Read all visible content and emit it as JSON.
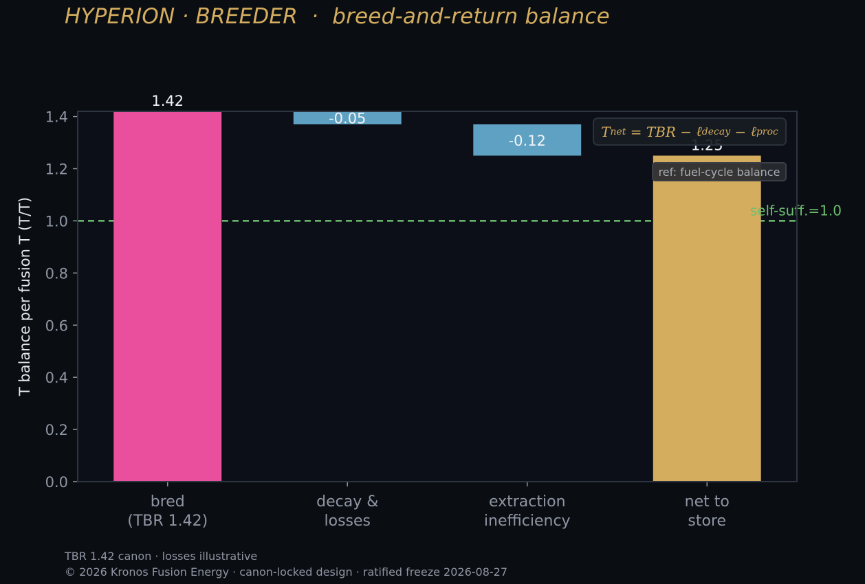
{
  "header": {
    "title": "HYPERION · BREEDER  ·  breed-and-return balance"
  },
  "footer": {
    "line1": "TBR 1.42 canon · losses illustrative",
    "line2": "© 2026 Kronos Fusion Energy · canon-locked design · ratified freeze 2026-08-27"
  },
  "annotations": {
    "formula": {
      "lhs": "T",
      "lhs_sub": "net",
      "eq": " = ",
      "tbr": "TBR",
      "minus": " − ",
      "ell": "ℓ",
      "decay_sub": "decay",
      "proc_sub": "proc"
    },
    "ref_note": "ref: fuel-cycle balance"
  },
  "chart_data": {
    "type": "bar",
    "subtype": "waterfall",
    "title": "",
    "xlabel": "",
    "ylabel": "T balance per fusion T (T/T)",
    "ylim": [
      0,
      1.42
    ],
    "yticks": [
      0.0,
      0.2,
      0.4,
      0.6,
      0.8,
      1.0,
      1.2,
      1.4
    ],
    "ytick_labels": [
      "0.0",
      "0.2",
      "0.4",
      "0.6",
      "0.8",
      "1.0",
      "1.2",
      "1.4"
    ],
    "grid": false,
    "categories": [
      [
        "bred",
        "(TBR 1.42)"
      ],
      [
        "decay &",
        "losses"
      ],
      [
        "extraction",
        "inefficiency"
      ],
      [
        "net to",
        "store"
      ]
    ],
    "bars": [
      {
        "kind": "total",
        "start": 0,
        "end": 1.42,
        "label": "1.42",
        "color": "#ea4f9e"
      },
      {
        "kind": "delta",
        "start": 1.42,
        "end": 1.37,
        "label": "-0.05",
        "color": "#5ea1c2"
      },
      {
        "kind": "delta",
        "start": 1.37,
        "end": 1.25,
        "label": "-0.12",
        "color": "#5ea1c2"
      },
      {
        "kind": "total",
        "start": 0,
        "end": 1.25,
        "label": "1.25",
        "color": "#d4ad5f"
      }
    ],
    "reference_line": {
      "y": 1.0,
      "label": "self-suff.=1.0",
      "color": "#6cc070",
      "style": "dashed"
    },
    "colors": {
      "background": "#0a0d12",
      "plot_bg": "#0c0f17",
      "frame": "#2e3440",
      "accent": "#d4ad5f"
    }
  }
}
